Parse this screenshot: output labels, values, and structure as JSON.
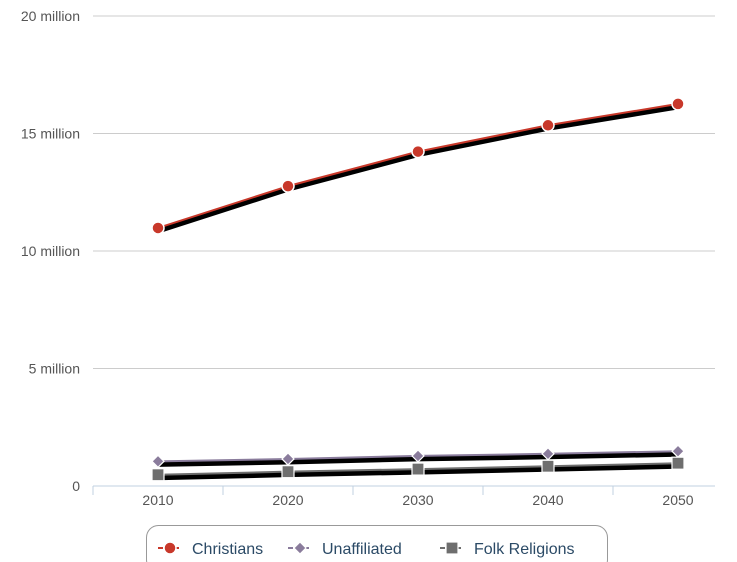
{
  "chart_data": {
    "type": "line",
    "x": [
      "2010",
      "2020",
      "2030",
      "2040",
      "2050"
    ],
    "y_ticks": [
      "0",
      "5 million",
      "10 million",
      "15 million",
      "20 million"
    ],
    "ylim": [
      0,
      20000000
    ],
    "grid": "horizontal",
    "legend_position": "bottom",
    "series": [
      {
        "name": "Christians",
        "values": [
          10980000,
          12760000,
          14230000,
          15350000,
          16260000
        ],
        "color": "#c8382a",
        "marker": "circle"
      },
      {
        "name": "Unaffiliated",
        "values": [
          1050000,
          1150000,
          1280000,
          1370000,
          1480000
        ],
        "color": "#8a7c9c",
        "marker": "diamond"
      },
      {
        "name": "Folk Religions",
        "values": [
          480000,
          610000,
          720000,
          840000,
          970000
        ],
        "color": "#6e6e6e",
        "marker": "square"
      }
    ]
  }
}
